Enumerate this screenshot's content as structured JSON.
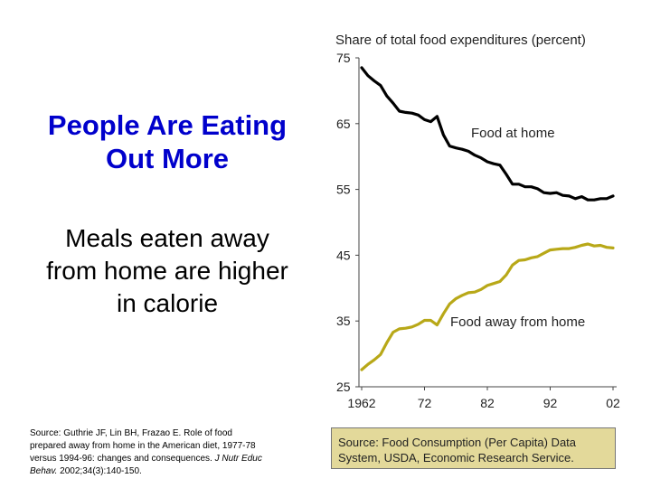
{
  "slide": {
    "title_line1": "People Are Eating",
    "title_line2": "Out More",
    "subtitle_line1": "Meals eaten away",
    "subtitle_line2": "from home are higher",
    "subtitle_line3": "in calorie",
    "citation_line1": "Source: Guthrie JF, Lin BH, Frazao E. Role of food",
    "citation_line2": "prepared away from home in the American diet, 1977-78",
    "citation_line3": "versus 1994-96: changes and consequences.",
    "citation_journal": "J Nutr Educ",
    "citation_line4_italic": "Behav.",
    "citation_line4_rest": " 2002;34(3):140-150.",
    "source_box_line1": "Source: Food Consumption (Per Capita) Data",
    "source_box_line2": "System, USDA, Economic Research Service."
  },
  "colors": {
    "title": "#0000cc",
    "food_at_home": "#000000",
    "food_away_from_home": "#b8a818",
    "source_box_bg": "#e3d99a"
  },
  "chart_data": {
    "type": "line",
    "title": "Share of total food expenditures (percent)",
    "xlabel": "",
    "ylabel": "",
    "xlim": [
      1962,
      2002
    ],
    "ylim": [
      25,
      75
    ],
    "yticks": [
      "25",
      "35",
      "45",
      "55",
      "65",
      "75"
    ],
    "xticks": [
      "1962",
      "72",
      "82",
      "92",
      "02"
    ],
    "x": [
      1962,
      1963,
      1964,
      1965,
      1966,
      1967,
      1968,
      1969,
      1970,
      1971,
      1972,
      1973,
      1974,
      1975,
      1976,
      1977,
      1978,
      1979,
      1980,
      1981,
      1982,
      1983,
      1984,
      1985,
      1986,
      1987,
      1988,
      1989,
      1990,
      1991,
      1992,
      1993,
      1994,
      1995,
      1996,
      1997,
      1998,
      1999,
      2000,
      2001,
      2002
    ],
    "series": [
      {
        "name": "Food at home",
        "values": [
          73.5,
          72.3,
          71.5,
          70.8,
          69.2,
          68.1,
          66.9,
          66.7,
          66.6,
          66.3,
          65.6,
          65.3,
          66.1,
          63.3,
          61.6,
          61.3,
          61.1,
          60.8,
          60.2,
          59.8,
          59.2,
          58.9,
          58.7,
          57.3,
          55.8,
          55.8,
          55.4,
          55.4,
          55.1,
          54.5,
          54.4,
          54.5,
          54.1,
          54.0,
          53.6,
          53.9,
          53.4,
          53.4,
          53.6,
          53.6,
          54.0
        ]
      },
      {
        "name": "Food away from home",
        "values": [
          27.6,
          28.4,
          29.1,
          29.9,
          31.7,
          33.3,
          33.8,
          33.9,
          34.1,
          34.5,
          35.1,
          35.1,
          34.4,
          36.1,
          37.6,
          38.4,
          38.9,
          39.3,
          39.4,
          39.8,
          40.4,
          40.7,
          41.0,
          42.0,
          43.5,
          44.2,
          44.3,
          44.6,
          44.8,
          45.3,
          45.8,
          45.9,
          46.0,
          46.0,
          46.2,
          46.5,
          46.7,
          46.4,
          46.5,
          46.2,
          46.1
        ]
      }
    ]
  }
}
